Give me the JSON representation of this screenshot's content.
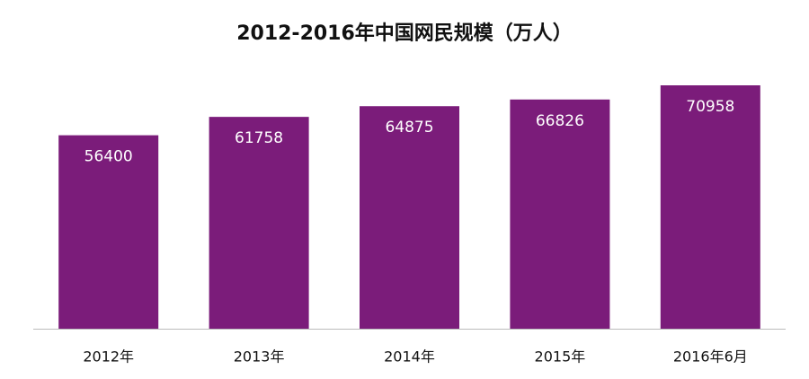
{
  "chart_data": {
    "type": "bar",
    "title": "2012-2016年中国网民规模（万人）",
    "categories": [
      "2012年",
      "2013年",
      "2014年",
      "2015年",
      "2016年6月"
    ],
    "values": [
      56400,
      61758,
      64875,
      66826,
      70958
    ],
    "color": "#7b1c7a"
  }
}
